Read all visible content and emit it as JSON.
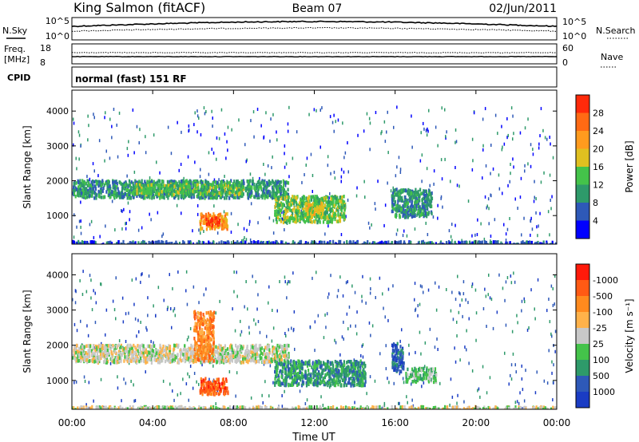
{
  "header": {
    "station": "King Salmon (fitACF)",
    "beam": "Beam 07",
    "date": "02/Jun/2011"
  },
  "status_panels": {
    "nsky_label": "N.Sky",
    "nsearch_label": "N.Search",
    "noise_ticks": [
      "10^5",
      "10^0"
    ],
    "freq_label_1": "Freq.",
    "freq_label_2": "[MHz]",
    "freq_ticks": [
      "18",
      "8"
    ],
    "nave_label": "Nave",
    "nave_ticks": [
      "60",
      "0"
    ],
    "cpid_label": "CPID",
    "cpid_value": "normal (fast) 151 RF"
  },
  "chart_data": [
    {
      "type": "heatmap",
      "name": "power",
      "ylabel": "Slant Range [km]",
      "ylim": [
        180,
        4600
      ],
      "yticks": [
        "1000",
        "2000",
        "3000",
        "4000"
      ],
      "xlim": [
        "00:00",
        "24:00"
      ],
      "colorbar": {
        "label": "Power [dB]",
        "ticks": [
          "4",
          "8",
          "12",
          "16",
          "20",
          "24",
          "28"
        ],
        "colors": [
          "#0000ff",
          "#2e59b8",
          "#2e9a6a",
          "#44c34a",
          "#e0c020",
          "#ff9b1e",
          "#ff6a14",
          "#ff2a0a"
        ]
      },
      "regions": [
        {
          "t0": 0.0,
          "t1": 10.7,
          "r0": 1550,
          "r1": 2050,
          "level": 2
        },
        {
          "t0": 3.0,
          "t1": 8.5,
          "r0": 1650,
          "r1": 1950,
          "level": 3
        },
        {
          "t0": 6.3,
          "t1": 7.7,
          "r0": 650,
          "r1": 1100,
          "level": 5
        },
        {
          "t0": 6.6,
          "t1": 7.3,
          "r0": 750,
          "r1": 1000,
          "level": 7
        },
        {
          "t0": 10.0,
          "t1": 13.5,
          "r0": 850,
          "r1": 1600,
          "level": 3
        },
        {
          "t0": 11.5,
          "t1": 12.5,
          "r0": 1000,
          "r1": 1400,
          "level": 4
        },
        {
          "t0": 15.8,
          "t1": 17.8,
          "r0": 1000,
          "r1": 1800,
          "level": 2
        },
        {
          "t0": 0.0,
          "t1": 24.0,
          "r0": 180,
          "r1": 300,
          "level": 1
        }
      ]
    },
    {
      "type": "heatmap",
      "name": "velocity",
      "ylabel": "Slant Range [km]",
      "ylim": [
        180,
        4600
      ],
      "yticks": [
        "1000",
        "2000",
        "3000",
        "4000"
      ],
      "xlim": [
        "00:00",
        "24:00"
      ],
      "xticks": [
        "00:00",
        "04:00",
        "08:00",
        "12:00",
        "16:00",
        "20:00",
        "00:00"
      ],
      "xlabel": "Time UT",
      "colorbar": {
        "label": "Velocity [m s⁻¹]",
        "ticks": [
          "1000",
          "500",
          "100",
          "25",
          "-25",
          "-100",
          "-500",
          "-1000"
        ],
        "colors": [
          "#1a3cc4",
          "#2e59b8",
          "#2e9a6a",
          "#44c34a",
          "#c8c8c8",
          "#ffb24a",
          "#ff8a1e",
          "#ff5a14",
          "#ff1a0a"
        ]
      },
      "regions": [
        {
          "t0": 0.0,
          "t1": 10.7,
          "r0": 1550,
          "r1": 2050,
          "level": 4
        },
        {
          "t0": 6.3,
          "t1": 7.7,
          "r0": 650,
          "r1": 1100,
          "level": 7
        },
        {
          "t0": 6.0,
          "t1": 7.0,
          "r0": 1600,
          "r1": 3000,
          "level": 6
        },
        {
          "t0": 10.0,
          "t1": 14.5,
          "r0": 900,
          "r1": 1600,
          "level": 2
        },
        {
          "t0": 15.8,
          "t1": 16.4,
          "r0": 1300,
          "r1": 2100,
          "level": 1
        },
        {
          "t0": 16.5,
          "t1": 18.0,
          "r0": 1000,
          "r1": 1400,
          "level": 3
        },
        {
          "t0": 0.0,
          "t1": 24.0,
          "r0": 180,
          "r1": 300,
          "level": 4
        }
      ]
    }
  ]
}
